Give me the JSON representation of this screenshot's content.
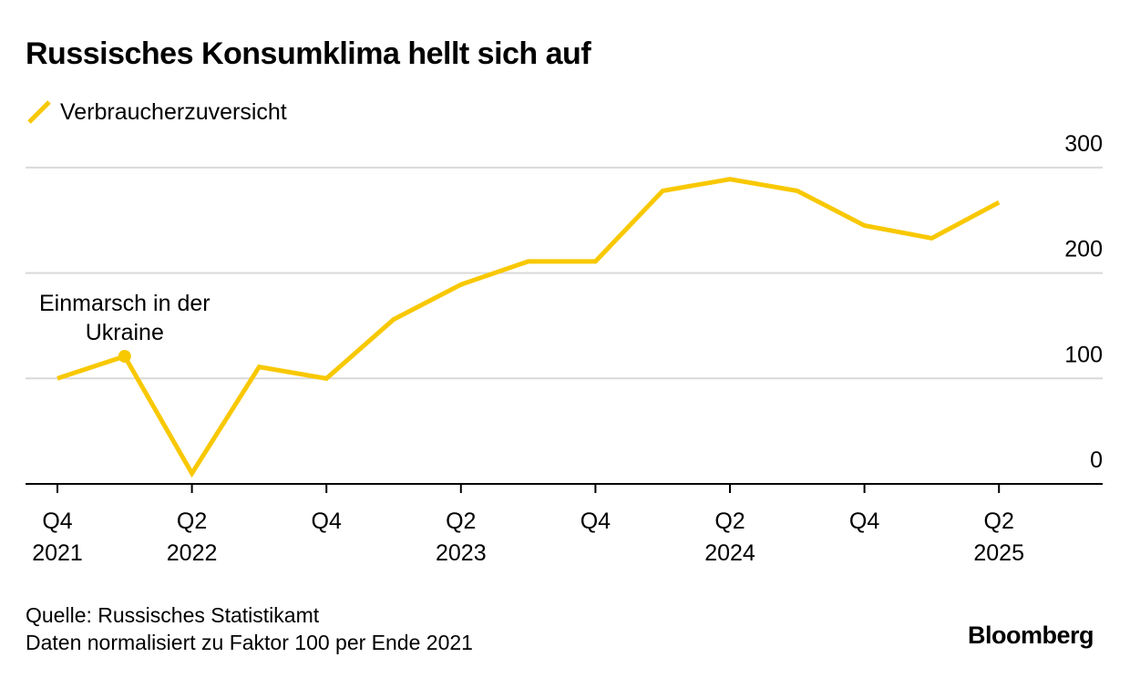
{
  "title": "Russisches Konsumklima hellt sich auf",
  "legend": {
    "label": "Verbraucherzuversicht",
    "color": "#F8C800"
  },
  "footer": {
    "source": "Quelle: Russisches Statistikamt",
    "note": "Daten normalisiert zu Faktor 100 per Ende 2021"
  },
  "brand": "Bloomberg",
  "chart_data": {
    "type": "line",
    "title": "Russisches Konsumklima hellt sich auf",
    "x": [
      "Q4 2021",
      "Q1 2022",
      "Q2 2022",
      "Q3 2022",
      "Q4 2022",
      "Q1 2023",
      "Q2 2023",
      "Q3 2023",
      "Q4 2023",
      "Q1 2024",
      "Q2 2024",
      "Q3 2024",
      "Q4 2024",
      "Q1 2025",
      "Q2 2025"
    ],
    "series": [
      {
        "name": "Verbraucherzuversicht",
        "color": "#F8C800",
        "values": [
          100,
          121,
          10,
          111,
          100,
          156,
          189,
          211,
          211,
          278,
          289,
          278,
          245,
          233,
          267
        ]
      }
    ],
    "ylim": [
      0,
      300
    ],
    "yticks": [
      0,
      100,
      200,
      300
    ],
    "xticks": [
      {
        "index": 0,
        "line1": "Q4",
        "line2": "2021"
      },
      {
        "index": 2,
        "line1": "Q2",
        "line2": "2022"
      },
      {
        "index": 4,
        "line1": "Q4",
        "line2": ""
      },
      {
        "index": 6,
        "line1": "Q2",
        "line2": "2023"
      },
      {
        "index": 8,
        "line1": "Q4",
        "line2": ""
      },
      {
        "index": 10,
        "line1": "Q2",
        "line2": "2024"
      },
      {
        "index": 12,
        "line1": "Q4",
        "line2": ""
      },
      {
        "index": 14,
        "line1": "Q2",
        "line2": "2025"
      }
    ],
    "annotation": {
      "index": 1,
      "line1": "Einmarsch in der",
      "line2": "Ukraine"
    },
    "grid": true,
    "legend_position": "top-left",
    "y_axis_side": "right"
  }
}
